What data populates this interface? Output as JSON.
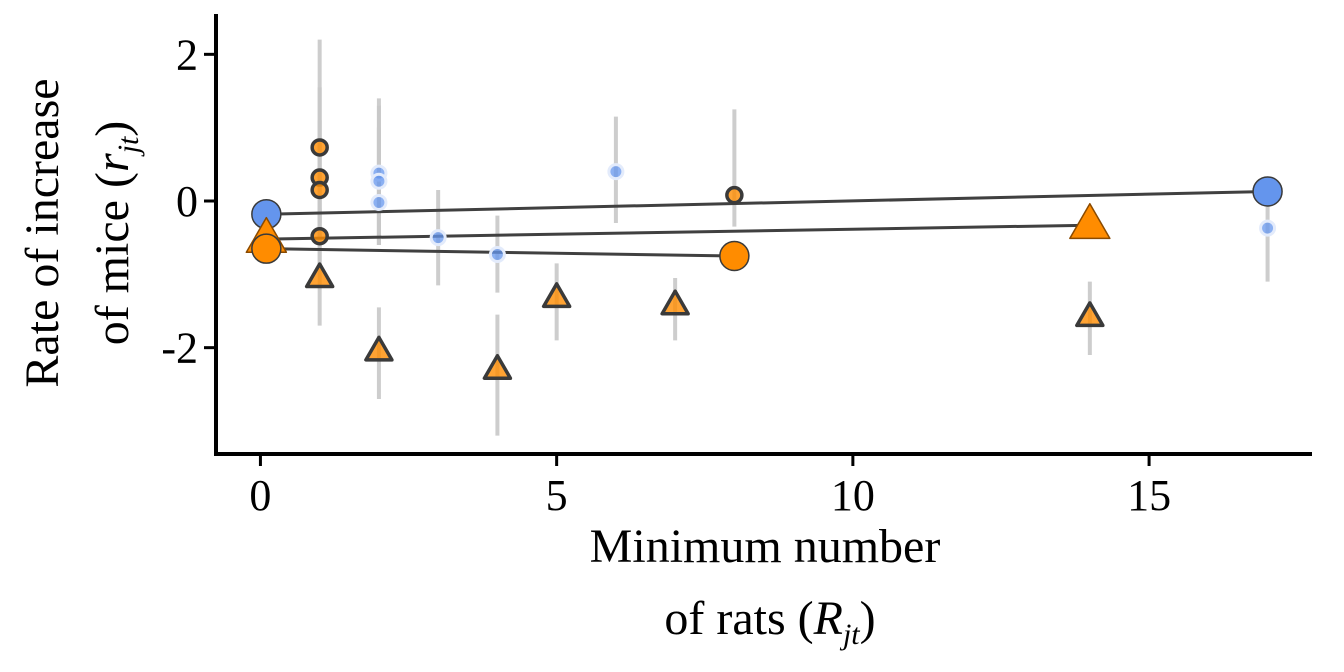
{
  "chart_data": {
    "type": "scatter",
    "xlabel": {
      "line1": "Minimum number",
      "line2_prefix": "of rats (",
      "line2_symbol": "R",
      "line2_sub": "jt",
      "line2_suffix": ")"
    },
    "ylabel": {
      "line1": "Rate of increase",
      "line2_prefix": "of mice (",
      "line2_symbol": "r",
      "line2_sub": "jt",
      "line2_suffix": ")"
    },
    "xlim": [
      -0.75,
      17.75
    ],
    "ylim": [
      -3.45,
      2.55
    ],
    "x_ticks": [
      0,
      5,
      10,
      15
    ],
    "y_ticks": [
      -2,
      0,
      2
    ],
    "grid": false,
    "legend": "none",
    "colors": {
      "blue": "#6495ed",
      "orange": "#ff8c00",
      "outline": "#3a3a3a",
      "line": "#404040",
      "errorbar": "#c8c8c8"
    },
    "series": [
      {
        "group": "blue-circles-observed",
        "color": "#6495ed",
        "shape": "circle-small-faded",
        "points": [
          {
            "x": 2,
            "y": 0.38,
            "lo": -0.6,
            "hi": 1.4
          },
          {
            "x": 2,
            "y": 0.27,
            "lo": -0.6,
            "hi": 1.3
          },
          {
            "x": 2,
            "y": -0.02,
            "lo": -0.6,
            "hi": 1.0
          },
          {
            "x": 3,
            "y": -0.5,
            "lo": -1.15,
            "hi": 0.15
          },
          {
            "x": 4,
            "y": -0.73,
            "lo": -1.25,
            "hi": -0.2
          },
          {
            "x": 6,
            "y": 0.4,
            "lo": -0.3,
            "hi": 1.15
          },
          {
            "x": 17,
            "y": -0.37,
            "lo": -1.1,
            "hi": 0.0
          }
        ]
      },
      {
        "group": "orange-circles-observed",
        "color": "#ff8c00",
        "shape": "circle-outlined",
        "points": [
          {
            "x": 1,
            "y": 0.73,
            "lo": -0.3,
            "hi": 2.2
          },
          {
            "x": 1,
            "y": 0.32,
            "lo": -0.6,
            "hi": 1.55
          },
          {
            "x": 1,
            "y": 0.15,
            "lo": -0.6,
            "hi": 1.1
          },
          {
            "x": 1,
            "y": -0.48,
            "lo": -0.9,
            "hi": -0.1
          },
          {
            "x": 8,
            "y": 0.08,
            "lo": -0.35,
            "hi": 1.25
          }
        ]
      },
      {
        "group": "orange-triangles-observed",
        "color": "#ff8c00",
        "shape": "triangle-outlined",
        "points": [
          {
            "x": 1,
            "y": -1.05,
            "lo": -1.7,
            "hi": -0.35
          },
          {
            "x": 2,
            "y": -2.05,
            "lo": -2.7,
            "hi": -1.45
          },
          {
            "x": 4,
            "y": -2.3,
            "lo": -3.2,
            "hi": -1.55
          },
          {
            "x": 5,
            "y": -1.32,
            "lo": -1.9,
            "hi": -0.85
          },
          {
            "x": 7,
            "y": -1.42,
            "lo": -1.9,
            "hi": -1.05
          },
          {
            "x": 14,
            "y": -1.58,
            "lo": -2.1,
            "hi": -1.1
          }
        ]
      }
    ],
    "fitted_lines": [
      {
        "group": "blue",
        "x": [
          0.1,
          17
        ],
        "y": [
          -0.18,
          0.13
        ],
        "endpoint_shape": "circle",
        "color": "#6495ed"
      },
      {
        "group": "orange-triangle",
        "x": [
          0.1,
          14
        ],
        "y": [
          -0.52,
          -0.33
        ],
        "endpoint_shape": "triangle",
        "color": "#ff8c00"
      },
      {
        "group": "orange-circle",
        "x": [
          0.1,
          8
        ],
        "y": [
          -0.65,
          -0.75
        ],
        "endpoint_shape": "circle",
        "color": "#ff8c00"
      }
    ]
  }
}
